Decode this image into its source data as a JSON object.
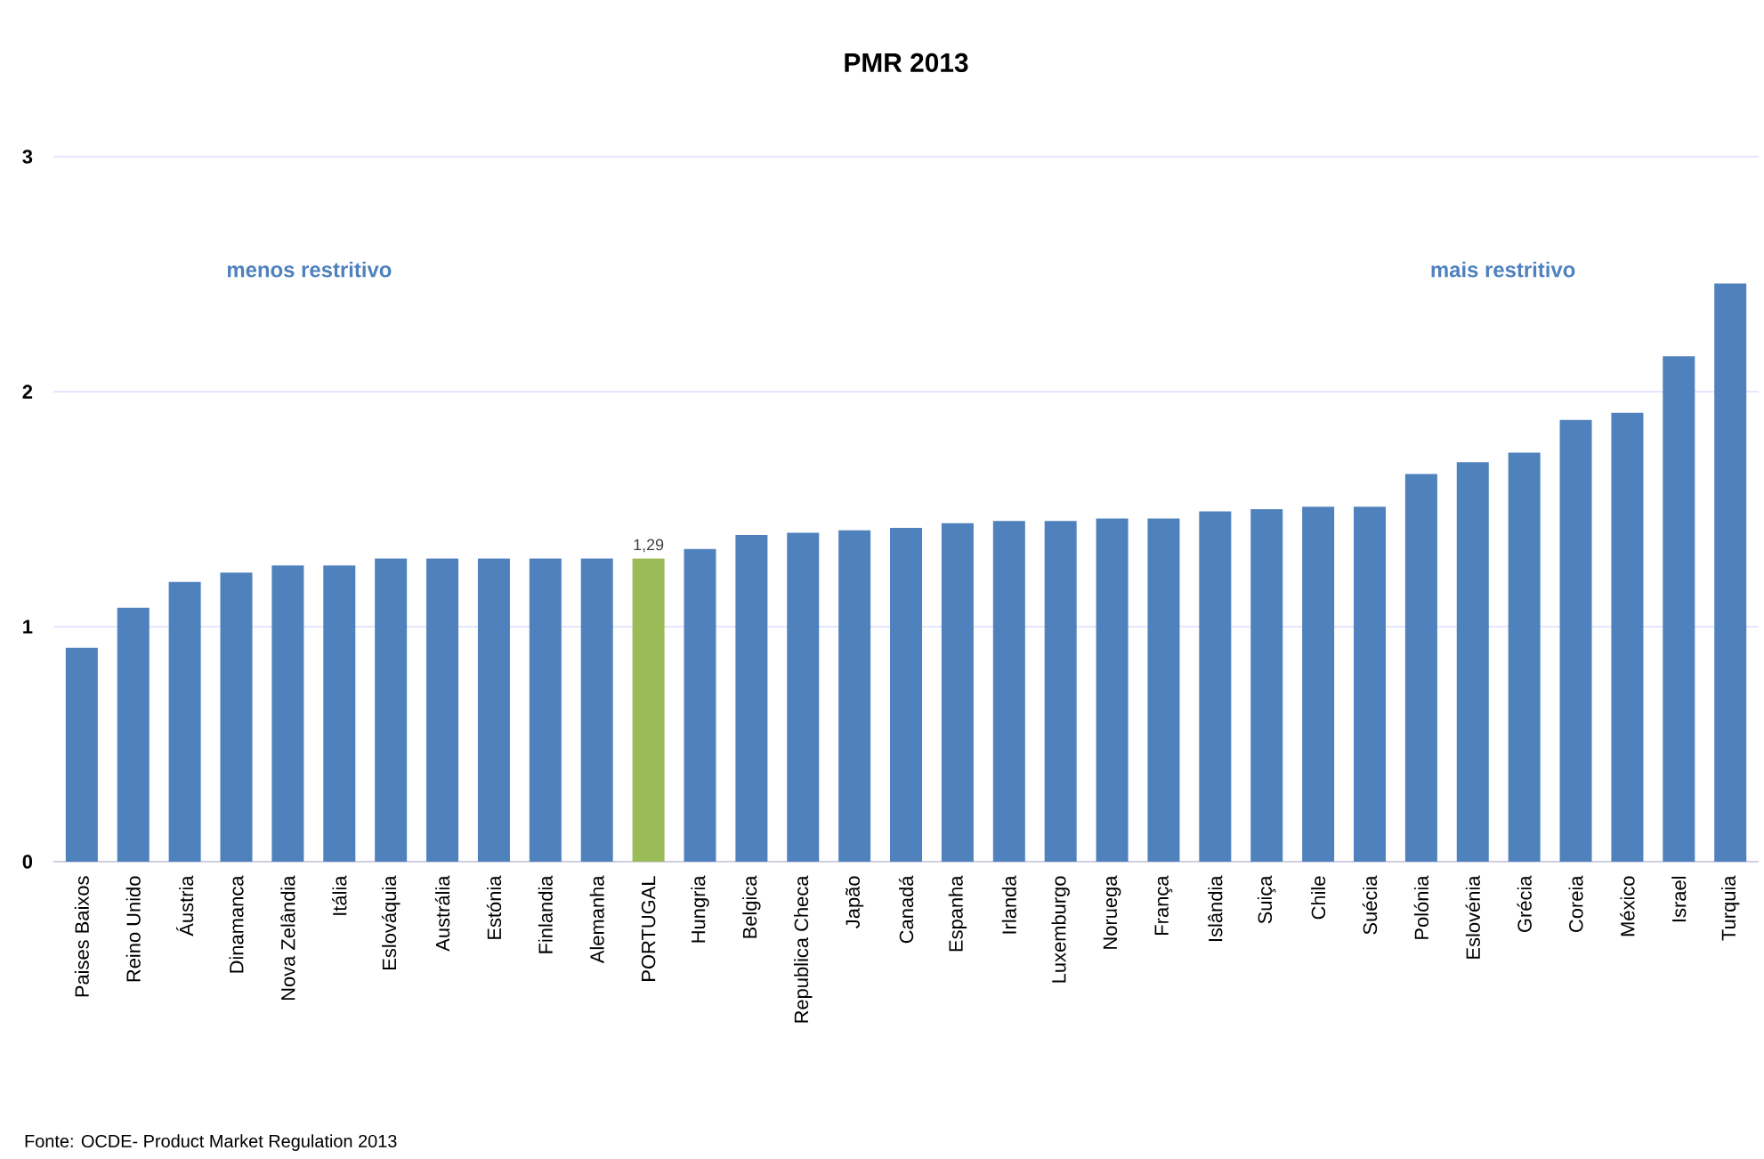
{
  "chart_data": {
    "type": "bar",
    "title": "PMR 2013",
    "categories": [
      "Paises Baixos",
      "Reino Unido",
      "Áustria",
      "Dinamanca",
      "Nova Zelândia",
      "Itália",
      "Eslováquia",
      "Austrália",
      "Estónia",
      "Finlandia",
      "Alemanha",
      "PORTUGAL",
      "Hungria",
      "Belgica",
      "Republica Checa",
      "Japão",
      "Canadá",
      "Espanha",
      "Irlanda",
      "Luxemburgo",
      "Noruega",
      "França",
      "Islândia",
      "Suiça",
      "Chile",
      "Suécia",
      "Polónia",
      "Eslovénia",
      "Grécia",
      "Coreia",
      "México",
      "Israel",
      "Turquia"
    ],
    "values": [
      0.91,
      1.08,
      1.19,
      1.23,
      1.26,
      1.26,
      1.29,
      1.29,
      1.29,
      1.29,
      1.29,
      1.29,
      1.33,
      1.39,
      1.4,
      1.41,
      1.42,
      1.44,
      1.45,
      1.45,
      1.46,
      1.46,
      1.49,
      1.5,
      1.51,
      1.51,
      1.65,
      1.7,
      1.74,
      1.88,
      1.91,
      2.15,
      2.46
    ],
    "colors": [
      "#4f81bd",
      "#4f81bd",
      "#4f81bd",
      "#4f81bd",
      "#4f81bd",
      "#4f81bd",
      "#4f81bd",
      "#4f81bd",
      "#4f81bd",
      "#4f81bd",
      "#4f81bd",
      "#9bbb59",
      "#4f81bd",
      "#4f81bd",
      "#4f81bd",
      "#4f81bd",
      "#4f81bd",
      "#4f81bd",
      "#4f81bd",
      "#4f81bd",
      "#4f81bd",
      "#4f81bd",
      "#4f81bd",
      "#4f81bd",
      "#4f81bd",
      "#4f81bd",
      "#4f81bd",
      "#4f81bd",
      "#4f81bd",
      "#4f81bd",
      "#4f81bd",
      "#4f81bd",
      "#4f81bd"
    ],
    "value_labels": [
      null,
      null,
      null,
      null,
      null,
      null,
      null,
      null,
      null,
      null,
      null,
      "1,29",
      null,
      null,
      null,
      null,
      null,
      null,
      null,
      null,
      null,
      null,
      null,
      null,
      null,
      null,
      null,
      null,
      null,
      null,
      null,
      null,
      null
    ],
    "ylim": [
      0,
      3
    ],
    "yticks": [
      0,
      1,
      2,
      3
    ],
    "grid": "y",
    "annotations": [
      "menos restritivo",
      "mais restritivo",
      "Fonte: OCDE- Product Market Regulation 2013"
    ]
  }
}
